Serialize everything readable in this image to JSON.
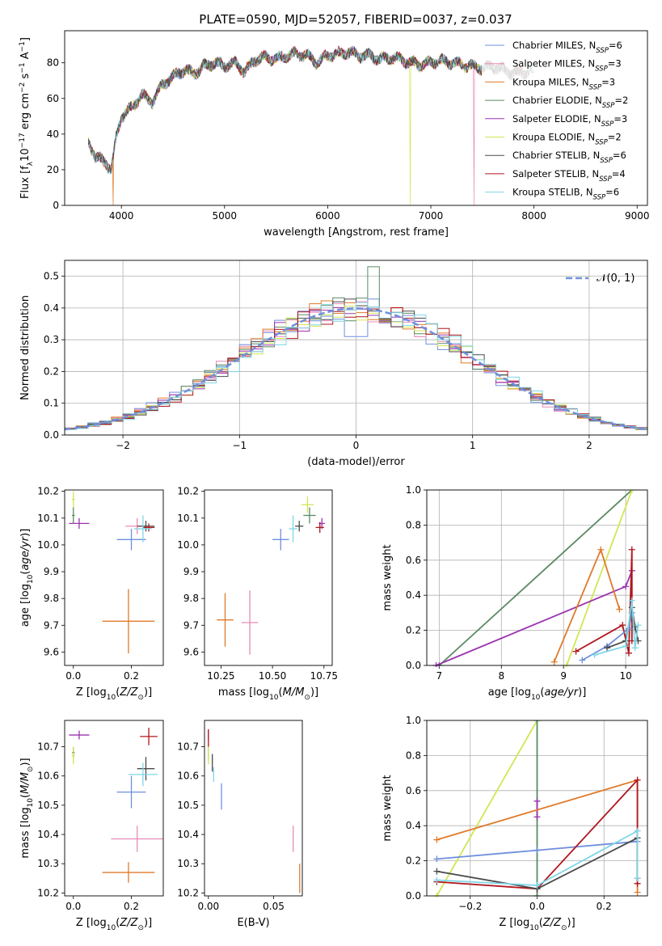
{
  "figure": {
    "title": "PLATE=0590, MJD=52057, FIBERID=0037, z=0.037"
  },
  "colors": {
    "chabrier_miles": "#6f8fdc",
    "salpeter_miles": "#e88ab8",
    "kroupa_miles": "#e07a2a",
    "chabrier_elodie": "#5a8a62",
    "salpeter_elodie": "#9b35b0",
    "kroupa_elodie": "#d2e654",
    "chabrier_stelib": "#4a4a4a",
    "salpeter_stelib": "#b0161e",
    "kroupa_stelib": "#7fd6e6",
    "normal_curve": "#6f8fdc"
  },
  "chart_data": [
    {
      "id": "spectrum",
      "type": "line",
      "xlabel": "wavelength [Angstrom, rest frame]",
      "ylabel": "Flux [f_λ 10^-17 erg cm^-2 s^-1 A^-1]",
      "xlim": [
        3450,
        9100
      ],
      "ylim": [
        0,
        98
      ],
      "xticks": [
        "4000",
        "5000",
        "6000",
        "7000",
        "8000",
        "9000"
      ],
      "yticks": [
        "0",
        "20",
        "40",
        "60",
        "80"
      ],
      "grid": false,
      "legend_position": "top-right",
      "legend": [
        {
          "main": "Chabrier MILES, N",
          "sub": "SSP",
          "tail": "=6"
        },
        {
          "main": "Salpeter MILES, N",
          "sub": "SSP",
          "tail": "=3"
        },
        {
          "main": "Kroupa MILES, N",
          "sub": "SSP",
          "tail": "=3"
        },
        {
          "main": "Chabrier ELODIE, N",
          "sub": "SSP",
          "tail": "=2"
        },
        {
          "main": "Salpeter ELODIE, N",
          "sub": "SSP",
          "tail": "=3"
        },
        {
          "main": "Kroupa ELODIE, N",
          "sub": "SSP",
          "tail": "=2"
        },
        {
          "main": "Chabrier STELIB, N",
          "sub": "SSP",
          "tail": "=6"
        },
        {
          "main": "Salpeter STELIB, N",
          "sub": "SSP",
          "tail": "=4"
        },
        {
          "main": "Kroupa STELIB, N",
          "sub": "SSP",
          "tail": "=6"
        }
      ],
      "continuum": [
        [
          3680,
          36
        ],
        [
          3750,
          27
        ],
        [
          3850,
          24
        ],
        [
          3900,
          20
        ],
        [
          3950,
          38
        ],
        [
          4000,
          50
        ],
        [
          4100,
          55
        ],
        [
          4200,
          62
        ],
        [
          4300,
          58
        ],
        [
          4400,
          68
        ],
        [
          4500,
          72
        ],
        [
          4600,
          76
        ],
        [
          4700,
          74
        ],
        [
          4800,
          78
        ],
        [
          4900,
          80
        ],
        [
          5000,
          78
        ],
        [
          5100,
          80
        ],
        [
          5200,
          75
        ],
        [
          5300,
          82
        ],
        [
          5400,
          83
        ],
        [
          5500,
          82
        ],
        [
          5600,
          84
        ],
        [
          5700,
          85
        ],
        [
          5800,
          84
        ],
        [
          5900,
          80
        ],
        [
          6000,
          84
        ],
        [
          6100,
          85
        ],
        [
          6200,
          86
        ],
        [
          6300,
          84
        ],
        [
          6400,
          84
        ],
        [
          6500,
          82
        ],
        [
          6600,
          83
        ],
        [
          6700,
          82
        ],
        [
          6800,
          80
        ],
        [
          6900,
          79
        ],
        [
          7000,
          80
        ],
        [
          7100,
          81
        ],
        [
          7200,
          80
        ],
        [
          7300,
          79
        ],
        [
          7400,
          78
        ],
        [
          7500,
          77
        ],
        [
          7600,
          78
        ],
        [
          7700,
          76
        ],
        [
          7800,
          74
        ],
        [
          7900,
          75
        ],
        [
          8000,
          76
        ]
      ],
      "dropouts": [
        {
          "model": "kroupa_elodie",
          "wavelength": 6800
        },
        {
          "model": "salpeter_miles",
          "wavelength": 7420
        },
        {
          "model": "kroupa_miles",
          "wavelength": 3920
        }
      ]
    },
    {
      "id": "residuals",
      "type": "histogram",
      "xlabel": "(data-model)/error",
      "ylabel": "Normed distribution",
      "xlim": [
        -2.5,
        2.5
      ],
      "ylim": [
        0,
        0.55
      ],
      "xticks": [
        "−2",
        "−1",
        "0",
        "1",
        "2"
      ],
      "yticks": [
        "0.0",
        "0.1",
        "0.2",
        "0.3",
        "0.4",
        "0.5"
      ],
      "grid": true,
      "legend_position": "top-right",
      "legend_label": "𝒩(0, 1)",
      "bin_width": 0.1,
      "bin_start": -2.5
    },
    {
      "id": "age_vs_Z",
      "type": "scatter",
      "xlabel": "Z [log10(Z/Z⊙)]",
      "ylabel": "age  [log10(age/yr)]",
      "xlim": [
        -0.03,
        0.31
      ],
      "ylim": [
        9.55,
        10.205
      ],
      "xticks": [
        "0.0",
        "0.2"
      ],
      "yticks": [
        "9.6",
        "9.7",
        "9.8",
        "9.9",
        "10.0",
        "10.1",
        "10.2"
      ],
      "points": [
        {
          "model": "chabrier_miles",
          "x": 0.2,
          "y": 10.02,
          "xerr": 0.05,
          "yerr": 0.04
        },
        {
          "model": "salpeter_miles",
          "x": 0.22,
          "y": 10.07,
          "xerr": 0.04,
          "yerr": 0.03
        },
        {
          "model": "kroupa_miles",
          "x": 0.19,
          "y": 9.715,
          "xerr": 0.09,
          "yerr": 0.12
        },
        {
          "model": "chabrier_elodie",
          "x": 0.0,
          "y": 10.11,
          "xerr": 0.005,
          "yerr": 0.03
        },
        {
          "model": "salpeter_elodie",
          "x": 0.02,
          "y": 10.08,
          "xerr": 0.035,
          "yerr": 0.02
        },
        {
          "model": "kroupa_elodie",
          "x": 0.0,
          "y": 10.17,
          "xerr": 0.005,
          "yerr": 0.03
        },
        {
          "model": "chabrier_stelib",
          "x": 0.25,
          "y": 10.07,
          "xerr": 0.03,
          "yerr": 0.02
        },
        {
          "model": "salpeter_stelib",
          "x": 0.26,
          "y": 10.065,
          "xerr": 0.02,
          "yerr": 0.015
        },
        {
          "model": "kroupa_stelib",
          "x": 0.24,
          "y": 10.06,
          "xerr": 0.03,
          "yerr": 0.05
        }
      ]
    },
    {
      "id": "age_vs_mass",
      "type": "scatter",
      "xlabel": "mass [log10(M/M⊙)]",
      "ylabel": "",
      "xlim": [
        10.17,
        10.79
      ],
      "ylim": [
        9.55,
        10.205
      ],
      "xticks": [
        "10.25",
        "10.50",
        "10.75"
      ],
      "yticks": [
        "9.6",
        "9.7",
        "9.8",
        "9.9",
        "10.0",
        "10.1",
        "10.2"
      ],
      "points": [
        {
          "model": "chabrier_miles",
          "x": 10.54,
          "y": 10.02,
          "xerr": 0.04,
          "yerr": 0.04
        },
        {
          "model": "salpeter_miles",
          "x": 10.39,
          "y": 9.71,
          "xerr": 0.04,
          "yerr": 0.12
        },
        {
          "model": "kroupa_miles",
          "x": 10.27,
          "y": 9.72,
          "xerr": 0.04,
          "yerr": 0.1
        },
        {
          "model": "chabrier_elodie",
          "x": 10.68,
          "y": 10.11,
          "xerr": 0.03,
          "yerr": 0.03
        },
        {
          "model": "salpeter_elodie",
          "x": 10.74,
          "y": 10.08,
          "xerr": 0.015,
          "yerr": 0.02
        },
        {
          "model": "kroupa_elodie",
          "x": 10.67,
          "y": 10.15,
          "xerr": 0.03,
          "yerr": 0.03
        },
        {
          "model": "chabrier_stelib",
          "x": 10.63,
          "y": 10.07,
          "xerr": 0.02,
          "yerr": 0.02
        },
        {
          "model": "salpeter_stelib",
          "x": 10.73,
          "y": 10.065,
          "xerr": 0.02,
          "yerr": 0.02
        },
        {
          "model": "kroupa_stelib",
          "x": 10.6,
          "y": 10.06,
          "xerr": 0.02,
          "yerr": 0.05
        }
      ]
    },
    {
      "id": "weight_vs_age",
      "type": "line",
      "xlabel": "age  [log10(age/yr)]",
      "ylabel": "mass weight",
      "xlim": [
        6.8,
        10.35
      ],
      "ylim": [
        0,
        1
      ],
      "xticks": [
        "7",
        "8",
        "9",
        "10"
      ],
      "yticks": [
        "0.0",
        "0.2",
        "0.4",
        "0.6",
        "0.8",
        "1.0"
      ],
      "grid": true,
      "series": [
        {
          "model": "chabrier_elodie",
          "x": [
            7.0,
            10.1
          ],
          "y": [
            0.0,
            1.0
          ]
        },
        {
          "model": "kroupa_elodie",
          "x": [
            9.05,
            10.1
          ],
          "y": [
            0.0,
            1.0
          ]
        },
        {
          "model": "salpeter_elodie",
          "x": [
            6.95,
            10.0,
            10.1
          ],
          "y": [
            0.0,
            0.45,
            0.54
          ]
        },
        {
          "model": "kroupa_miles",
          "x": [
            8.85,
            9.6,
            9.9
          ],
          "y": [
            0.02,
            0.66,
            0.32
          ]
        },
        {
          "model": "salpeter_stelib",
          "x": [
            9.2,
            9.95,
            10.05,
            10.1,
            10.1
          ],
          "y": [
            0.08,
            0.23,
            0.07,
            0.66,
            0.14
          ]
        },
        {
          "model": "chabrier_miles",
          "x": [
            9.3,
            9.7,
            10.05,
            10.1
          ],
          "y": [
            0.03,
            0.11,
            0.21,
            0.3
          ]
        },
        {
          "model": "chabrier_stelib",
          "x": [
            9.7,
            10.0,
            10.1,
            10.15,
            10.2
          ],
          "y": [
            0.1,
            0.14,
            0.33,
            0.22,
            0.14
          ]
        },
        {
          "model": "kroupa_stelib",
          "x": [
            9.5,
            10.0,
            10.1,
            10.15,
            10.2
          ],
          "y": [
            0.06,
            0.11,
            0.37,
            0.1,
            0.23
          ]
        }
      ]
    },
    {
      "id": "mass_vs_Z",
      "type": "scatter",
      "xlabel": "Z [log10(Z/Z⊙)]",
      "ylabel": "mass [log10(M/M⊙)]",
      "xlim": [
        -0.03,
        0.31
      ],
      "ylim": [
        10.19,
        10.79
      ],
      "xticks": [
        "0.0",
        "0.2"
      ],
      "yticks": [
        "10.2",
        "10.3",
        "10.4",
        "10.5",
        "10.6",
        "10.7"
      ],
      "points": [
        {
          "model": "chabrier_miles",
          "x": 0.2,
          "y": 10.545,
          "xerr": 0.05,
          "yerr": 0.055
        },
        {
          "model": "salpeter_miles",
          "x": 0.22,
          "y": 10.385,
          "xerr": 0.09,
          "yerr": 0.045
        },
        {
          "model": "kroupa_miles",
          "x": 0.19,
          "y": 10.27,
          "xerr": 0.09,
          "yerr": 0.035
        },
        {
          "model": "chabrier_elodie",
          "x": 0.0,
          "y": 10.68,
          "xerr": 0.005,
          "yerr": 0.02
        },
        {
          "model": "salpeter_elodie",
          "x": 0.02,
          "y": 10.74,
          "xerr": 0.035,
          "yerr": 0.015
        },
        {
          "model": "kroupa_elodie",
          "x": 0.0,
          "y": 10.67,
          "xerr": 0.005,
          "yerr": 0.03
        },
        {
          "model": "chabrier_stelib",
          "x": 0.25,
          "y": 10.625,
          "xerr": 0.03,
          "yerr": 0.04
        },
        {
          "model": "salpeter_stelib",
          "x": 0.26,
          "y": 10.735,
          "xerr": 0.03,
          "yerr": 0.03
        },
        {
          "model": "kroupa_stelib",
          "x": 0.24,
          "y": 10.605,
          "xerr": 0.05,
          "yerr": 0.04
        }
      ]
    },
    {
      "id": "mass_vs_ebv",
      "type": "scatter",
      "xlabel": "E(B-V)",
      "ylabel": "",
      "xlim": [
        -0.003,
        0.072
      ],
      "ylim": [
        10.19,
        10.79
      ],
      "xticks": [
        "0.00",
        "0.05"
      ],
      "yticks": [
        "10.2",
        "10.3",
        "10.4",
        "10.5",
        "10.6",
        "10.7"
      ],
      "points": [
        {
          "model": "chabrier_miles",
          "x": 0.01,
          "y": 10.53,
          "xerr": 0,
          "yerr": 0.045
        },
        {
          "model": "salpeter_miles",
          "x": 0.065,
          "y": 10.385,
          "xerr": 0,
          "yerr": 0.045
        },
        {
          "model": "kroupa_miles",
          "x": 0.07,
          "y": 10.25,
          "xerr": 0,
          "yerr": 0.05
        },
        {
          "model": "chabrier_elodie",
          "x": 0.0,
          "y": 10.68,
          "xerr": 0,
          "yerr": 0.02
        },
        {
          "model": "salpeter_elodie",
          "x": 0.0,
          "y": 10.74,
          "xerr": 0,
          "yerr": 0.015
        },
        {
          "model": "kroupa_elodie",
          "x": 0.0,
          "y": 10.67,
          "xerr": 0,
          "yerr": 0.03
        },
        {
          "model": "chabrier_stelib",
          "x": 0.003,
          "y": 10.645,
          "xerr": 0,
          "yerr": 0.03
        },
        {
          "model": "salpeter_stelib",
          "x": 0.0,
          "y": 10.73,
          "xerr": 0,
          "yerr": 0.03
        },
        {
          "model": "kroupa_stelib",
          "x": 0.004,
          "y": 10.605,
          "xerr": 0,
          "yerr": 0.025
        }
      ]
    },
    {
      "id": "weight_vs_Z",
      "type": "line",
      "xlabel": "Z [log10(Z/Z⊙)]",
      "ylabel": "mass weight",
      "xlim": [
        -0.33,
        0.33
      ],
      "ylim": [
        0,
        1
      ],
      "xticks": [
        "−0.2",
        "0.0",
        "0.2"
      ],
      "yticks": [
        "0.0",
        "0.2",
        "0.4",
        "0.6",
        "0.8",
        "1.0"
      ],
      "grid": true,
      "series": [
        {
          "model": "kroupa_elodie",
          "x": [
            -0.3,
            0.0
          ],
          "y": [
            0.0,
            1.0
          ]
        },
        {
          "model": "chabrier_elodie",
          "x": [
            0.0,
            0.0
          ],
          "y": [
            0.0,
            1.0
          ]
        },
        {
          "model": "salpeter_elodie",
          "x": [
            0.0,
            0.0
          ],
          "y": [
            0.45,
            0.54
          ]
        },
        {
          "model": "kroupa_miles",
          "x": [
            -0.3,
            0.3,
            0.3
          ],
          "y": [
            0.32,
            0.66,
            0.02
          ]
        },
        {
          "model": "chabrier_miles",
          "x": [
            -0.3,
            0.0,
            0.3
          ],
          "y": [
            0.21,
            0.26,
            0.31
          ]
        },
        {
          "model": "salpeter_stelib",
          "x": [
            -0.3,
            0.0,
            0.3,
            0.3
          ],
          "y": [
            0.08,
            0.04,
            0.66,
            0.07
          ]
        },
        {
          "model": "chabrier_stelib",
          "x": [
            -0.3,
            0.0,
            0.3,
            0.3
          ],
          "y": [
            0.14,
            0.04,
            0.33,
            0.1
          ]
        },
        {
          "model": "kroupa_stelib",
          "x": [
            -0.3,
            0.0,
            0.3,
            0.3
          ],
          "y": [
            0.09,
            0.06,
            0.37,
            0.1
          ]
        }
      ]
    }
  ]
}
